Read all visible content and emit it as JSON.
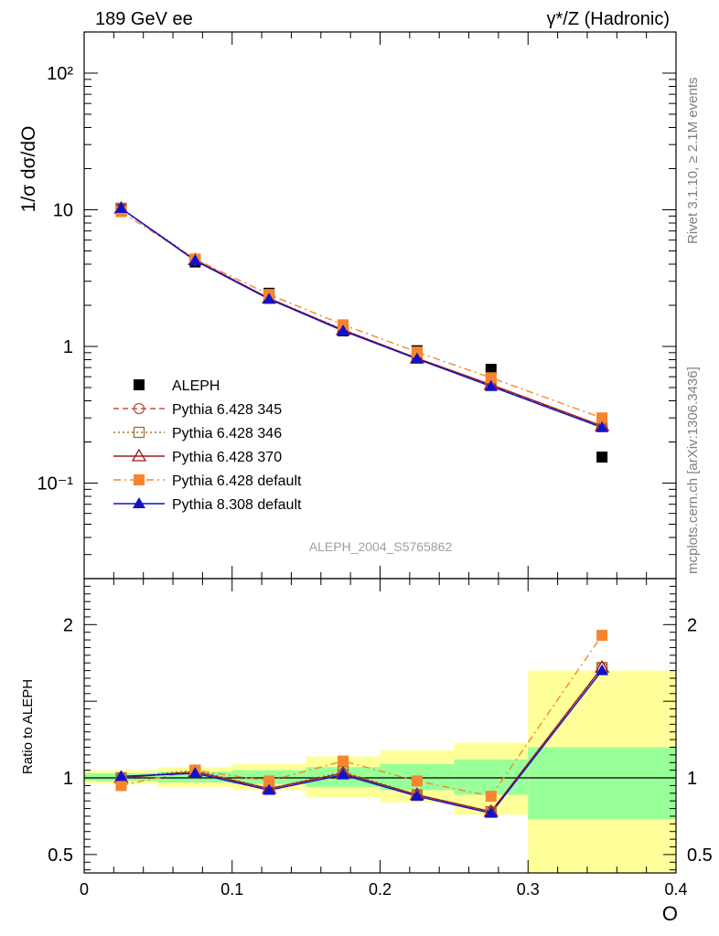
{
  "header": {
    "left": "189 GeV ee",
    "right": "γ*/Z (Hadronic)"
  },
  "side_labels": {
    "rivet": "Rivet 3.1.10, ≥ 2.1M events",
    "site": "mcplots.cern.ch [arXiv:1306.3436]"
  },
  "watermark": "ALEPH_2004_S5765862",
  "chart_data": [
    {
      "type": "scatter",
      "panel": "main",
      "ylabel": "1/σ  dσ/dO",
      "yscale": "log",
      "ylim": [
        0.02,
        200
      ],
      "y_ticks": [
        {
          "value": 0.1,
          "label": "10⁻¹"
        },
        {
          "value": 1,
          "label": "1"
        },
        {
          "value": 10,
          "label": "10"
        },
        {
          "value": 100,
          "label": "10²"
        }
      ],
      "x": [
        0.025,
        0.075,
        0.125,
        0.175,
        0.225,
        0.275,
        0.35
      ],
      "legend_position": "bottom-left",
      "series": [
        {
          "name": "ALEPH",
          "color": "#000000",
          "marker": "square-filled",
          "line": "none",
          "values": [
            10.2,
            4.15,
            2.45,
            1.3,
            0.93,
            0.68,
            0.155
          ]
        },
        {
          "name": "Pythia 6.428 345",
          "color": "#c0504d",
          "marker": "circle-open",
          "line": "dashed",
          "values": [
            10.25,
            4.3,
            2.25,
            1.32,
            0.82,
            0.52,
            0.26
          ]
        },
        {
          "name": "Pythia 6.428 346",
          "color": "#a07030",
          "marker": "square-open",
          "line": "dotted",
          "values": [
            10.25,
            4.35,
            2.25,
            1.33,
            0.82,
            0.52,
            0.26
          ]
        },
        {
          "name": "Pythia 6.428 370",
          "color": "#9b1b1b",
          "marker": "triangle-open",
          "line": "solid",
          "values": [
            10.22,
            4.3,
            2.25,
            1.32,
            0.82,
            0.525,
            0.262
          ]
        },
        {
          "name": "Pythia 6.428 default",
          "color": "#f7852e",
          "marker": "square-filled",
          "line": "dashdot",
          "values": [
            9.7,
            4.35,
            2.4,
            1.44,
            0.91,
            0.59,
            0.3
          ]
        },
        {
          "name": "Pythia 8.308 default",
          "color": "#1111cc",
          "marker": "triangle-filled",
          "line": "solid",
          "values": [
            10.25,
            4.25,
            2.22,
            1.3,
            0.81,
            0.51,
            0.255
          ]
        }
      ]
    },
    {
      "type": "line",
      "panel": "ratio",
      "ylabel": "Ratio to ALEPH",
      "xlabel": "O",
      "xlim": [
        0,
        0.4
      ],
      "ylim": [
        0.38,
        2.3
      ],
      "x_ticks": [
        0,
        0.1,
        0.2,
        0.3,
        0.4
      ],
      "x_tick_labels": [
        "0",
        "0.1",
        "0.2",
        "0.3",
        "0.4"
      ],
      "y_ticks": [
        0.5,
        1,
        2
      ],
      "y_tick_labels": [
        "0.5",
        "1",
        "2"
      ],
      "reference_line": 1,
      "bands": [
        {
          "xlo": 0.0,
          "xhi": 0.05,
          "inner": [
            0.98,
            1.03
          ],
          "outer": [
            0.96,
            1.05
          ]
        },
        {
          "xlo": 0.05,
          "xhi": 0.1,
          "inner": [
            0.97,
            1.04
          ],
          "outer": [
            0.94,
            1.07
          ]
        },
        {
          "xlo": 0.1,
          "xhi": 0.15,
          "inner": [
            0.96,
            1.05
          ],
          "outer": [
            0.92,
            1.09
          ]
        },
        {
          "xlo": 0.15,
          "xhi": 0.2,
          "inner": [
            0.94,
            1.07
          ],
          "outer": [
            0.87,
            1.14
          ]
        },
        {
          "xlo": 0.2,
          "xhi": 0.25,
          "inner": [
            0.92,
            1.09
          ],
          "outer": [
            0.84,
            1.18
          ]
        },
        {
          "xlo": 0.25,
          "xhi": 0.3,
          "inner": [
            0.89,
            1.12
          ],
          "outer": [
            0.76,
            1.23
          ]
        },
        {
          "xlo": 0.3,
          "xhi": 0.4,
          "inner": [
            0.73,
            1.2
          ],
          "outer": [
            0.38,
            1.7
          ]
        }
      ],
      "band_colors": {
        "inner": "#99ff99",
        "outer": "#ffff99"
      },
      "x": [
        0.025,
        0.075,
        0.125,
        0.175,
        0.225,
        0.275,
        0.35
      ],
      "series": [
        {
          "name": "Pythia 6.428 345",
          "values": [
            1.0,
            1.04,
            0.93,
            1.03,
            0.89,
            0.78,
            1.72
          ]
        },
        {
          "name": "Pythia 6.428 346",
          "values": [
            1.0,
            1.05,
            0.93,
            1.04,
            0.89,
            0.78,
            1.72
          ]
        },
        {
          "name": "Pythia 6.428 370",
          "values": [
            1.0,
            1.04,
            0.93,
            1.03,
            0.89,
            0.78,
            1.72
          ]
        },
        {
          "name": "Pythia 6.428 default",
          "values": [
            0.95,
            1.05,
            0.98,
            1.11,
            0.98,
            0.88,
            1.93
          ]
        },
        {
          "name": "Pythia 8.308 default",
          "values": [
            1.01,
            1.03,
            0.92,
            1.02,
            0.88,
            0.77,
            1.7
          ]
        }
      ]
    }
  ]
}
